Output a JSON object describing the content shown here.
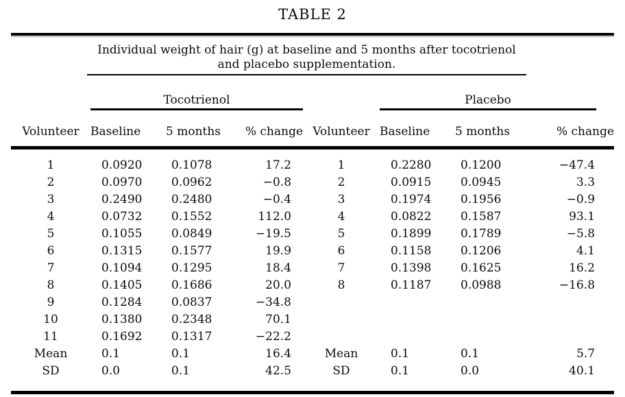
{
  "title": "TABLE 2",
  "caption": {
    "line1": "Individual weight of hair (g) at baseline and 5 months after tocotrienol",
    "line2": "and placebo supplementation."
  },
  "groups": {
    "left": "Tocotrienol",
    "right": "Placebo"
  },
  "columns": {
    "volunteer": "Volunteer",
    "baseline": "Baseline",
    "months5": "5 months",
    "pct_change": "% change"
  },
  "rows": [
    {
      "t": [
        "1",
        "0.0920",
        "0.1078",
        "17.2"
      ],
      "p": [
        "1",
        "0.2280",
        "0.1200",
        "−47.4"
      ]
    },
    {
      "t": [
        "2",
        "0.0970",
        "0.0962",
        "−0.8"
      ],
      "p": [
        "2",
        "0.0915",
        "0.0945",
        "3.3"
      ]
    },
    {
      "t": [
        "3",
        "0.2490",
        "0.2480",
        "−0.4"
      ],
      "p": [
        "3",
        "0.1974",
        "0.1956",
        "−0.9"
      ]
    },
    {
      "t": [
        "4",
        "0.0732",
        "0.1552",
        "112.0"
      ],
      "p": [
        "4",
        "0.0822",
        "0.1587",
        "93.1"
      ]
    },
    {
      "t": [
        "5",
        "0.1055",
        "0.0849",
        "−19.5"
      ],
      "p": [
        "5",
        "0.1899",
        "0.1789",
        "−5.8"
      ]
    },
    {
      "t": [
        "6",
        "0.1315",
        "0.1577",
        "19.9"
      ],
      "p": [
        "6",
        "0.1158",
        "0.1206",
        "4.1"
      ]
    },
    {
      "t": [
        "7",
        "0.1094",
        "0.1295",
        "18.4"
      ],
      "p": [
        "7",
        "0.1398",
        "0.1625",
        "16.2"
      ]
    },
    {
      "t": [
        "8",
        "0.1405",
        "0.1686",
        "20.0"
      ],
      "p": [
        "8",
        "0.1187",
        "0.0988",
        "−16.8"
      ]
    },
    {
      "t": [
        "9",
        "0.1284",
        "0.0837",
        "−34.8"
      ],
      "p": [
        "",
        "",
        "",
        ""
      ]
    },
    {
      "t": [
        "10",
        "0.1380",
        "0.2348",
        "70.1"
      ],
      "p": [
        "",
        "",
        "",
        ""
      ]
    },
    {
      "t": [
        "11",
        "0.1692",
        "0.1317",
        "−22.2"
      ],
      "p": [
        "",
        "",
        "",
        ""
      ]
    },
    {
      "t": [
        "Mean",
        "0.1",
        "0.1",
        "16.4"
      ],
      "p": [
        "Mean",
        "0.1",
        "0.1",
        "5.7"
      ]
    },
    {
      "t": [
        "SD",
        "0.0",
        "0.1",
        "42.5"
      ],
      "p": [
        "SD",
        "0.1",
        "0.0",
        "40.1"
      ]
    }
  ]
}
